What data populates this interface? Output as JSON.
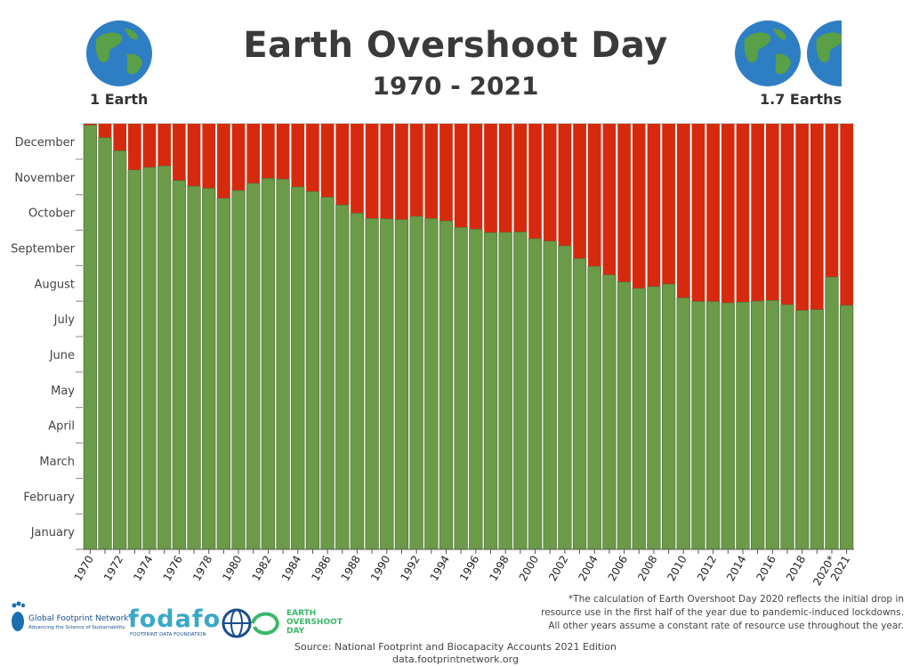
{
  "header": {
    "title": "Earth Overshoot Day",
    "subtitle": "1970 - 2021",
    "left_label": "1 Earth",
    "right_label": "1.7 Earths",
    "globe_icon": "globe-icon"
  },
  "colors": {
    "overshoot": "#d62a0f",
    "budget": "#6b9a48",
    "bar_stroke": "#4a6e30"
  },
  "chart_data": {
    "type": "bar",
    "stacked": true,
    "title": "Earth Overshoot Day",
    "subtitle": "1970 - 2021",
    "y_unit": "month of year",
    "ylim": [
      0,
      12
    ],
    "yticks": [
      "January",
      "February",
      "March",
      "April",
      "May",
      "June",
      "July",
      "August",
      "September",
      "October",
      "November",
      "December"
    ],
    "x_tick_labels": [
      "1970",
      "1972",
      "1974",
      "1976",
      "1978",
      "1980",
      "1982",
      "1984",
      "1986",
      "1988",
      "1990",
      "1992",
      "1994",
      "1996",
      "1998",
      "2000",
      "2002",
      "2004",
      "2006",
      "2008",
      "2010",
      "2012",
      "2014",
      "2016",
      "2018",
      "2020*",
      "2021"
    ],
    "categories": [
      "1970",
      "1971",
      "1972",
      "1973",
      "1974",
      "1975",
      "1976",
      "1977",
      "1978",
      "1979",
      "1980",
      "1981",
      "1982",
      "1983",
      "1984",
      "1985",
      "1986",
      "1987",
      "1988",
      "1989",
      "1990",
      "1991",
      "1992",
      "1993",
      "1994",
      "1995",
      "1996",
      "1997",
      "1998",
      "1999",
      "2000",
      "2001",
      "2002",
      "2003",
      "2004",
      "2005",
      "2006",
      "2007",
      "2008",
      "2009",
      "2010",
      "2011",
      "2012",
      "2013",
      "2014",
      "2015",
      "2016",
      "2017",
      "2018",
      "2019",
      "2020",
      "2021"
    ],
    "overshoot_day": [
      11.96,
      11.61,
      11.24,
      10.7,
      10.77,
      10.81,
      10.4,
      10.24,
      10.18,
      9.9,
      10.12,
      10.32,
      10.46,
      10.44,
      10.22,
      10.09,
      9.93,
      9.71,
      9.48,
      9.33,
      9.32,
      9.3,
      9.39,
      9.33,
      9.26,
      9.08,
      9.03,
      8.93,
      8.94,
      8.95,
      8.76,
      8.69,
      8.56,
      8.2,
      7.98,
      7.74,
      7.54,
      7.36,
      7.41,
      7.48,
      7.09,
      6.99,
      6.99,
      6.95,
      6.97,
      7.0,
      7.02,
      6.9,
      6.74,
      6.76,
      7.68,
      6.88
    ],
    "series": [
      {
        "name": "",
        "role": "within budget (before overshoot day)",
        "values_ref": "overshoot_day"
      },
      {
        "name": "",
        "role": "overshoot (remainder of year)",
        "values_ref": "overshoot_day"
      }
    ],
    "grid": false
  },
  "footer": {
    "footnote_lines": [
      "*The calculation of Earth Overshoot Day 2020 reflects the initial drop in",
      "resource use in the first half of the year due to pandemic-induced lockdowns.",
      "All other years assume a constant rate of resource use throughout the year."
    ],
    "source": "Source: National Footprint and Biocapacity Accounts 2021 Edition",
    "source_url": "data.footprintnetwork.org",
    "logos": {
      "gfn_name": "Global Footprint Network®",
      "gfn_tagline": "Advancing the Science of Sustainability",
      "fodafo_name": "fodafo",
      "fodafo_tagline": "FOOTPRINT DATA FOUNDATION",
      "eod_lines": [
        "EARTH",
        "OVERSHOOT",
        "DAY"
      ]
    }
  }
}
